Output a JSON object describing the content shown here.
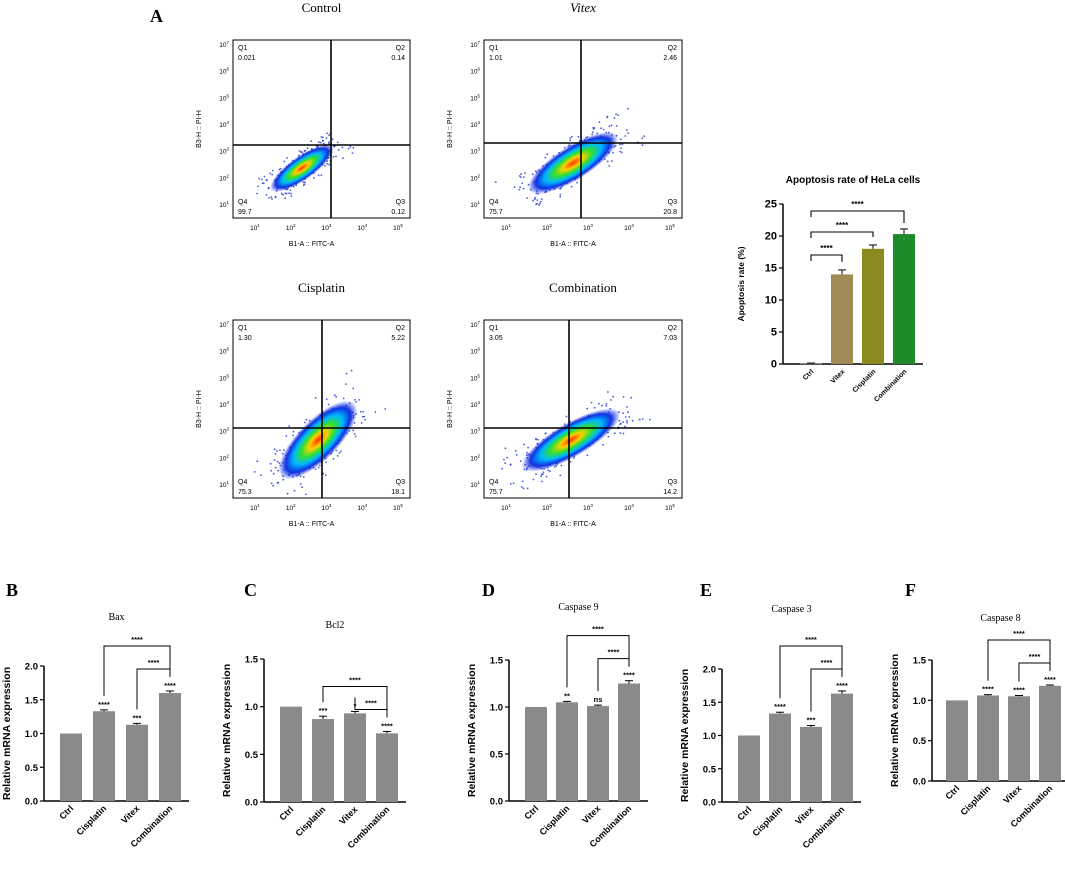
{
  "panel_letters": {
    "A": "A",
    "B": "B",
    "C": "C",
    "D": "D",
    "E": "E",
    "F": "F"
  },
  "colors": {
    "bar_gray": "#8a8a8a",
    "ctrl": "#8a8a8a",
    "vitex": "#a08a55",
    "cisplatin": "#8a8a1e",
    "combination": "#1f8a2a",
    "axis": "#000000"
  },
  "flow": {
    "y_axis_label": "B3-H :: PI-H",
    "x_axis_label": "B1-A :: FITC-A",
    "ticks": [
      "10",
      "10",
      "10",
      "10",
      "10",
      "10",
      "10"
    ],
    "tick_exps": [
      "1",
      "2",
      "3",
      "4",
      "5",
      "6",
      "7"
    ],
    "plots": [
      {
        "title": "Control",
        "italic": false,
        "q1": "Q1",
        "q1_val": "0.021",
        "q2": "Q2",
        "q2_val": "0.14",
        "q3": "Q3",
        "q3_val": "0.12",
        "q4": "Q4",
        "q4_val": "99.7"
      },
      {
        "title": "Vitex",
        "italic": true,
        "q1": "Q1",
        "q1_val": "1.01",
        "q2": "Q2",
        "q2_val": "2.46",
        "q3": "Q3",
        "q3_val": "20.8",
        "q4": "Q4",
        "q4_val": "75.7"
      },
      {
        "title": "Cisplatin",
        "italic": false,
        "q1": "Q1",
        "q1_val": "1.30",
        "q2": "Q2",
        "q2_val": "5.22",
        "q3": "Q3",
        "q3_val": "18.1",
        "q4": "Q4",
        "q4_val": "75.3"
      },
      {
        "title": "Combination",
        "italic": false,
        "q1": "Q1",
        "q1_val": "3.05",
        "q2": "Q2",
        "q2_val": "7.03",
        "q3": "Q3",
        "q3_val": "14.2",
        "q4": "Q4",
        "q4_val": "75.7"
      }
    ]
  },
  "chart_data": [
    {
      "id": "apoptosis",
      "type": "bar",
      "title": "Apoptosis rate of HeLa cells",
      "ylabel": "Apoptosis rate (%)",
      "categories": [
        "Ctrl",
        "Vitex",
        "Cisplatin",
        "Combination"
      ],
      "values": [
        0.1,
        14,
        18,
        20.3
      ],
      "errors": [
        0.05,
        0.7,
        0.6,
        0.8
      ],
      "ylim": [
        0,
        25
      ],
      "yticks": [
        "0",
        "5",
        "10",
        "15",
        "20",
        "25"
      ],
      "bar_colors": [
        "#8a8a8a",
        "#a08a55",
        "#8a8a1e",
        "#1f8a2a"
      ],
      "sig": [
        {
          "from": 0,
          "to": 1,
          "label": "****"
        },
        {
          "from": 0,
          "to": 2,
          "label": "****"
        },
        {
          "from": 0,
          "to": 3,
          "label": "****"
        }
      ]
    },
    {
      "id": "bax",
      "type": "bar",
      "title": "Bax",
      "ylabel": "Relative mRNA expression",
      "categories": [
        "Ctrl",
        "Cisplatin",
        "Vitex",
        "Combination"
      ],
      "values": [
        1.0,
        1.33,
        1.13,
        1.6
      ],
      "errors": [
        0.0,
        0.02,
        0.02,
        0.03
      ],
      "ylim": [
        0,
        2.0
      ],
      "yticks": [
        "0.0",
        "0.5",
        "1.0",
        "1.5",
        "2.0"
      ],
      "bar_labels": [
        "",
        "****",
        "***",
        "****"
      ],
      "sig": [
        {
          "from": 1,
          "to": 3,
          "label": "****"
        },
        {
          "from": 2,
          "to": 3,
          "label": "****"
        }
      ]
    },
    {
      "id": "bcl2",
      "type": "bar",
      "title": "Bcl2",
      "ylabel": "Relative mRNA expression",
      "categories": [
        "Ctrl",
        "Cisplatin",
        "Vitex",
        "Combination"
      ],
      "values": [
        1.0,
        0.87,
        0.93,
        0.72
      ],
      "errors": [
        0.0,
        0.03,
        0.02,
        0.02
      ],
      "ylim": [
        0,
        1.5
      ],
      "yticks": [
        "0.0",
        "0.5",
        "1.0",
        "1.5"
      ],
      "bar_labels": [
        "",
        "***",
        "*",
        "****"
      ],
      "sig": [
        {
          "from": 1,
          "to": 3,
          "label": "****"
        },
        {
          "from": 2,
          "to": 3,
          "label": "****"
        }
      ]
    },
    {
      "id": "casp9",
      "type": "bar",
      "title": "Caspase 9",
      "ylabel": "Relative mRNA expression",
      "categories": [
        "Ctrl",
        "Cisplatin",
        "Vitex",
        "Combination"
      ],
      "values": [
        1.0,
        1.05,
        1.01,
        1.25
      ],
      "errors": [
        0.0,
        0.01,
        0.01,
        0.03
      ],
      "ylim": [
        0,
        1.5
      ],
      "yticks": [
        "0.0",
        "0.5",
        "1.0",
        "1.5"
      ],
      "bar_labels": [
        "",
        "**",
        "ns",
        "****"
      ],
      "sig": [
        {
          "from": 1,
          "to": 3,
          "label": "****"
        },
        {
          "from": 2,
          "to": 3,
          "label": "****"
        }
      ]
    },
    {
      "id": "casp3",
      "type": "bar",
      "title": "Caspase 3",
      "ylabel": "Relative mRNA expression",
      "categories": [
        "Ctrl",
        "Cisplatin",
        "Vitex",
        "Combination"
      ],
      "values": [
        1.0,
        1.33,
        1.13,
        1.63
      ],
      "errors": [
        0.0,
        0.02,
        0.02,
        0.04
      ],
      "ylim": [
        0,
        2.0
      ],
      "yticks": [
        "0.0",
        "0.5",
        "1.0",
        "1.5",
        "2.0"
      ],
      "bar_labels": [
        "",
        "****",
        "***",
        "****"
      ],
      "sig": [
        {
          "from": 1,
          "to": 3,
          "label": "****"
        },
        {
          "from": 2,
          "to": 3,
          "label": "****"
        }
      ]
    },
    {
      "id": "casp8",
      "type": "bar",
      "title": "Caspase 8",
      "ylabel": "Relative mRNA expression",
      "categories": [
        "Ctrl",
        "Cisplatin",
        "Vitex",
        "Combination"
      ],
      "values": [
        1.0,
        1.06,
        1.05,
        1.18
      ],
      "errors": [
        0.0,
        0.01,
        0.01,
        0.01
      ],
      "ylim": [
        0,
        1.5
      ],
      "yticks": [
        "0.0",
        "0.5",
        "1.0",
        "1.5"
      ],
      "bar_labels": [
        "",
        "****",
        "****",
        "****"
      ],
      "sig": [
        {
          "from": 1,
          "to": 3,
          "label": "****"
        },
        {
          "from": 2,
          "to": 3,
          "label": "****"
        }
      ]
    }
  ]
}
